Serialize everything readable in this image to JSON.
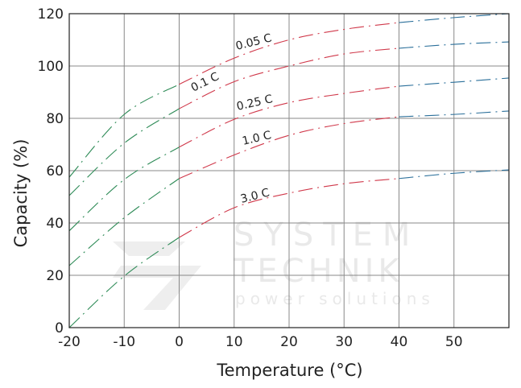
{
  "chart_data": {
    "type": "line",
    "title": "",
    "xlabel": "Temperature (°C)",
    "ylabel": "Capacity (%)",
    "xlim": [
      -20,
      60
    ],
    "ylim": [
      0,
      120
    ],
    "x_ticks": [
      "-20",
      "-10",
      "0",
      "10",
      "20",
      "30",
      "40",
      "50"
    ],
    "y_ticks": [
      "0",
      "20",
      "40",
      "60",
      "80",
      "100",
      "120"
    ],
    "grid": true,
    "legend": "none (inline curve labels)",
    "line_style": "dash-dot",
    "segment_colors": {
      "below_0": "#2e8b57",
      "0_to_40": "#d0384a",
      "above_40": "#2a6f9a"
    },
    "x": [
      -20,
      -10,
      0,
      10,
      20,
      30,
      40,
      50,
      60
    ],
    "series": [
      {
        "name": "0.05 C",
        "values": [
          57.5,
          81.5,
          93,
          103,
          110,
          114,
          116.6,
          118.5,
          120
        ]
      },
      {
        "name": "0.1 C",
        "values": [
          50.5,
          70.5,
          83.7,
          94,
          100,
          104.6,
          106.8,
          108.3,
          109.2
        ]
      },
      {
        "name": "0.25 C",
        "values": [
          37,
          56.6,
          69,
          79.6,
          86,
          89.5,
          92.3,
          93.8,
          95.4
        ]
      },
      {
        "name": "1.0 C",
        "values": [
          23.7,
          42,
          57,
          66,
          73.5,
          78,
          80.6,
          81.5,
          82.8
        ]
      },
      {
        "name": "3.0 C",
        "values": [
          0,
          19.7,
          34.5,
          45.8,
          51.4,
          55,
          57,
          59,
          60.3
        ]
      }
    ]
  },
  "watermark": {
    "line1": "SYSTEM",
    "line2": "TECHNIK",
    "line3": "power solutions"
  }
}
